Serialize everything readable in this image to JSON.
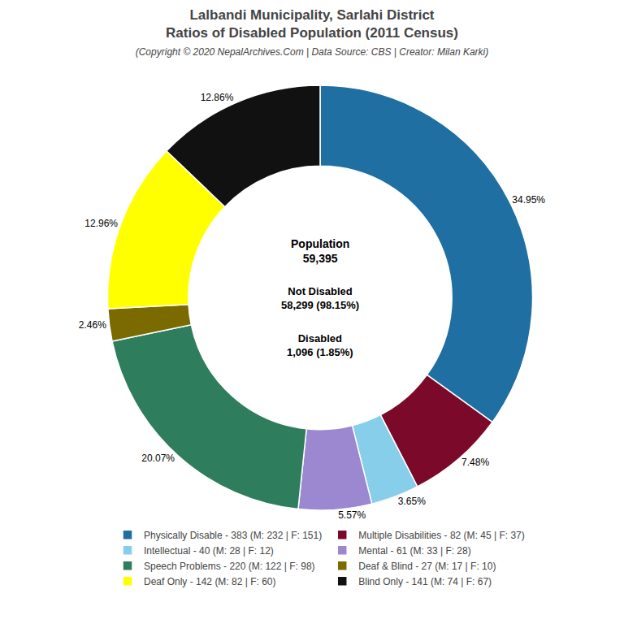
{
  "chart_data": {
    "type": "pie",
    "title": "Lalbandi Municipality, Sarlahi District\nRatios of Disabled Population (2011 Census)",
    "subtitle": "(Copyright © 2020 NepalArchives.Com | Data Source: CBS | Creator: Milan Karki)",
    "categories": [
      "Physically Disable - 383 (M: 232 | F: 151)",
      "Multiple Disabilities - 82 (M: 45 | F: 37)",
      "Intellectual - 40 (M: 28 | F: 12)",
      "Mental - 61 (M: 33 | F: 28)",
      "Speech Problems - 220 (M: 122 | F: 98)",
      "Deaf & Blind - 27 (M: 17 | F: 10)",
      "Deaf Only - 142 (M: 82 | F: 60)",
      "Blind Only - 141 (M: 74 | F: 67)"
    ],
    "values": [
      34.95,
      7.48,
      3.65,
      5.57,
      20.07,
      2.46,
      12.96,
      12.86
    ],
    "value_labels": [
      "34.95%",
      "7.48%",
      "3.65%",
      "5.57%",
      "20.07%",
      "2.46%",
      "12.96%",
      "12.86%"
    ],
    "colors": [
      "#1f6fa3",
      "#7b0a2a",
      "#87ceeb",
      "#9b88d0",
      "#2e7d5c",
      "#7a6a00",
      "#ffff00",
      "#111111"
    ],
    "data_labels": true,
    "legend": "bottom",
    "annotations": [
      "Population\n59,395",
      "Not Disabled\n58,299 (98.15%)",
      "Disabled\n1,096 (1.85%)"
    ]
  }
}
